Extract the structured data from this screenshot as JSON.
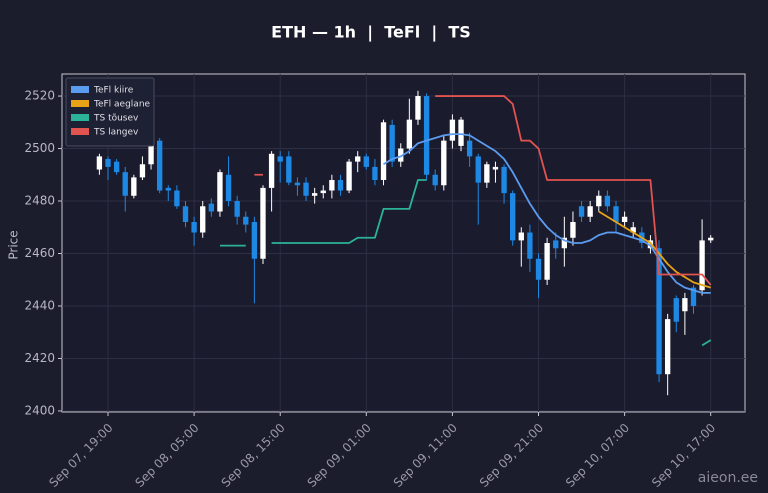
{
  "chart_data": {
    "type": "candlestick",
    "title": "ETH — 1h  |  TeFl  |  TS",
    "ylabel": "Price",
    "watermark": "aieon.ee",
    "x": [
      "Sep 07, 18:00",
      "Sep 07, 19:00",
      "Sep 07, 20:00",
      "Sep 07, 21:00",
      "Sep 07, 22:00",
      "Sep 07, 23:00",
      "Sep 08, 00:00",
      "Sep 08, 01:00",
      "Sep 08, 02:00",
      "Sep 08, 03:00",
      "Sep 08, 04:00",
      "Sep 08, 05:00",
      "Sep 08, 06:00",
      "Sep 08, 07:00",
      "Sep 08, 08:00",
      "Sep 08, 09:00",
      "Sep 08, 10:00",
      "Sep 08, 11:00",
      "Sep 08, 12:00",
      "Sep 08, 13:00",
      "Sep 08, 14:00",
      "Sep 08, 15:00",
      "Sep 08, 16:00",
      "Sep 08, 17:00",
      "Sep 08, 18:00",
      "Sep 08, 19:00",
      "Sep 08, 20:00",
      "Sep 08, 21:00",
      "Sep 08, 22:00",
      "Sep 08, 23:00",
      "Sep 09, 00:00",
      "Sep 09, 01:00",
      "Sep 09, 02:00",
      "Sep 09, 03:00",
      "Sep 09, 04:00",
      "Sep 09, 05:00",
      "Sep 09, 06:00",
      "Sep 09, 07:00",
      "Sep 09, 08:00",
      "Sep 09, 09:00",
      "Sep 09, 10:00",
      "Sep 09, 11:00",
      "Sep 09, 12:00",
      "Sep 09, 13:00",
      "Sep 09, 14:00",
      "Sep 09, 15:00",
      "Sep 09, 16:00",
      "Sep 09, 17:00",
      "Sep 09, 18:00",
      "Sep 09, 19:00",
      "Sep 09, 20:00",
      "Sep 09, 21:00",
      "Sep 09, 22:00",
      "Sep 09, 23:00",
      "Sep 10, 00:00",
      "Sep 10, 01:00",
      "Sep 10, 02:00",
      "Sep 10, 03:00",
      "Sep 10, 04:00",
      "Sep 10, 05:00",
      "Sep 10, 06:00",
      "Sep 10, 07:00",
      "Sep 10, 08:00",
      "Sep 10, 09:00",
      "Sep 10, 10:00",
      "Sep 10, 11:00",
      "Sep 10, 12:00",
      "Sep 10, 13:00",
      "Sep 10, 14:00",
      "Sep 10, 15:00",
      "Sep 10, 16:00",
      "Sep 10, 17:00"
    ],
    "open": [
      2492,
      2496,
      2495,
      2491,
      2482,
      2489,
      2494,
      2503,
      2485,
      2484,
      2478,
      2472,
      2468,
      2479,
      2476,
      2490,
      2480,
      2474,
      2472,
      2458,
      2485,
      2497,
      2497,
      2487,
      2487,
      2482,
      2483,
      2484,
      2488,
      2484,
      2495,
      2497,
      2493,
      2488,
      2509,
      2495,
      2500,
      2511,
      2520,
      2490,
      2486,
      2503,
      2501,
      2503,
      2497,
      2487,
      2492,
      2493,
      2483,
      2465,
      2468,
      2458,
      2450,
      2465,
      2462,
      2466,
      2478,
      2474,
      2478,
      2482,
      2478,
      2472,
      2468,
      2468,
      2462,
      2462,
      2414,
      2443,
      2438,
      2447,
      2446,
      2465
    ],
    "high": [
      2498,
      2497,
      2496,
      2493,
      2490,
      2497,
      2504,
      2504,
      2486,
      2486,
      2480,
      2474,
      2480,
      2481,
      2492,
      2497,
      2482,
      2476,
      2474,
      2486,
      2499,
      2499,
      2499,
      2489,
      2489,
      2485,
      2486,
      2490,
      2490,
      2496,
      2499,
      2498,
      2496,
      2511,
      2511,
      2502,
      2519,
      2522,
      2521,
      2492,
      2505,
      2513,
      2512,
      2506,
      2498,
      2495,
      2495,
      2494,
      2484,
      2470,
      2471,
      2460,
      2466,
      2468,
      2474,
      2476,
      2480,
      2480,
      2484,
      2484,
      2480,
      2476,
      2472,
      2470,
      2467,
      2465,
      2437,
      2444,
      2445,
      2448,
      2473,
      2467
    ],
    "low": [
      2490,
      2488,
      2490,
      2476,
      2481,
      2488,
      2492,
      2483,
      2480,
      2477,
      2470,
      2463,
      2466,
      2474,
      2474,
      2478,
      2471,
      2468,
      2441,
      2456,
      2476,
      2487,
      2486,
      2482,
      2480,
      2479,
      2481,
      2481,
      2482,
      2483,
      2491,
      2492,
      2486,
      2486,
      2493,
      2493,
      2498,
      2509,
      2488,
      2484,
      2484,
      2500,
      2499,
      2493,
      2471,
      2485,
      2487,
      2479,
      2463,
      2455,
      2453,
      2443,
      2448,
      2458,
      2455,
      2463,
      2472,
      2472,
      2476,
      2476,
      2468,
      2470,
      2466,
      2462,
      2460,
      2411,
      2406,
      2430,
      2429,
      2437,
      2444,
      2464
    ],
    "close": [
      2497,
      2493,
      2491,
      2482,
      2489,
      2494,
      2502,
      2484,
      2484,
      2478,
      2472,
      2468,
      2478,
      2476,
      2491,
      2480,
      2474,
      2471,
      2458,
      2485,
      2498,
      2495,
      2487,
      2486,
      2482,
      2483,
      2484,
      2488,
      2484,
      2495,
      2497,
      2493,
      2488,
      2510,
      2495,
      2500,
      2511,
      2520,
      2490,
      2486,
      2503,
      2511,
      2511,
      2497,
      2487,
      2494,
      2493,
      2483,
      2465,
      2468,
      2458,
      2450,
      2464,
      2462,
      2466,
      2472,
      2474,
      2478,
      2482,
      2478,
      2472,
      2474,
      2470,
      2464,
      2465,
      2414,
      2435,
      2434,
      2443,
      2440,
      2465,
      2466
    ],
    "up_color": "#ffffff",
    "down_color": "#1e88e5",
    "series": [
      {
        "name": "TeFl kiire",
        "color": "#5b9cf0",
        "values": [
          null,
          null,
          null,
          null,
          null,
          null,
          null,
          null,
          null,
          null,
          null,
          null,
          null,
          null,
          null,
          null,
          null,
          null,
          null,
          null,
          null,
          null,
          null,
          null,
          null,
          null,
          null,
          null,
          null,
          null,
          null,
          null,
          null,
          2494,
          2496,
          2497,
          2499,
          2502,
          2503,
          2504,
          2505,
          2505.5,
          2505.5,
          2505,
          2503,
          2501,
          2499,
          2496,
          2491,
          2485,
          2479,
          2474,
          2470,
          2467,
          2465,
          2464,
          2464,
          2465,
          2467,
          2468,
          2468,
          2467,
          2466,
          2465,
          2463,
          2458,
          2453,
          2449,
          2447,
          2446,
          2445,
          2445
        ]
      },
      {
        "name": "TeFl aeglane",
        "color": "#e8a317",
        "values": [
          null,
          null,
          null,
          null,
          null,
          null,
          null,
          null,
          null,
          null,
          null,
          null,
          null,
          null,
          null,
          null,
          null,
          null,
          null,
          null,
          null,
          null,
          null,
          null,
          null,
          null,
          null,
          null,
          null,
          null,
          null,
          null,
          null,
          null,
          null,
          null,
          null,
          null,
          null,
          null,
          null,
          null,
          null,
          null,
          null,
          null,
          null,
          null,
          null,
          null,
          null,
          null,
          null,
          null,
          null,
          null,
          null,
          null,
          2476,
          2474,
          2472,
          2470,
          2468,
          2466,
          2464,
          2460,
          2456,
          2453,
          2451,
          2449,
          2448,
          2447
        ]
      },
      {
        "name": "TS tõusev",
        "color": "#2bb39a",
        "values": [
          null,
          null,
          null,
          null,
          null,
          null,
          null,
          null,
          null,
          null,
          null,
          null,
          null,
          null,
          2463,
          2463,
          2463,
          2463,
          null,
          null,
          2464,
          2464,
          2464,
          2464,
          2464,
          2464,
          2464,
          2464,
          2464,
          2464,
          2466,
          2466,
          2466,
          2477,
          2477,
          2477,
          2477,
          2488,
          2488,
          null,
          null,
          null,
          null,
          null,
          null,
          null,
          null,
          null,
          null,
          null,
          null,
          null,
          null,
          null,
          null,
          null,
          null,
          null,
          null,
          null,
          null,
          null,
          null,
          null,
          null,
          null,
          null,
          null,
          null,
          null,
          2425,
          2427
        ]
      },
      {
        "name": "TS langev",
        "color": "#e0534f",
        "values": [
          null,
          null,
          null,
          null,
          null,
          null,
          null,
          null,
          null,
          null,
          null,
          null,
          null,
          null,
          null,
          null,
          null,
          null,
          2490,
          2490,
          null,
          null,
          null,
          null,
          null,
          null,
          null,
          null,
          null,
          null,
          null,
          null,
          null,
          null,
          null,
          null,
          null,
          null,
          null,
          2520,
          2520,
          2520,
          2520,
          2520,
          2520,
          2520,
          2520,
          2520,
          2517,
          2503,
          2503,
          2500,
          2488,
          2488,
          2488,
          2488,
          2488,
          2488,
          2488,
          2488,
          2488,
          2488,
          2488,
          2488,
          2488,
          2452,
          2452,
          2452,
          2452,
          2452,
          2452,
          2448
        ]
      }
    ],
    "ylim": [
      2399.6,
      2528.4
    ],
    "yticks": [
      2400,
      2420,
      2440,
      2460,
      2480,
      2500,
      2520
    ],
    "xticks": [
      "Sep 07, 19:00",
      "Sep 08, 05:00",
      "Sep 08, 15:00",
      "Sep 09, 01:00",
      "Sep 09, 11:00",
      "Sep 09, 21:00",
      "Sep 10, 07:00",
      "Sep 10, 17:00"
    ],
    "grid": true,
    "legend": "upper left"
  }
}
